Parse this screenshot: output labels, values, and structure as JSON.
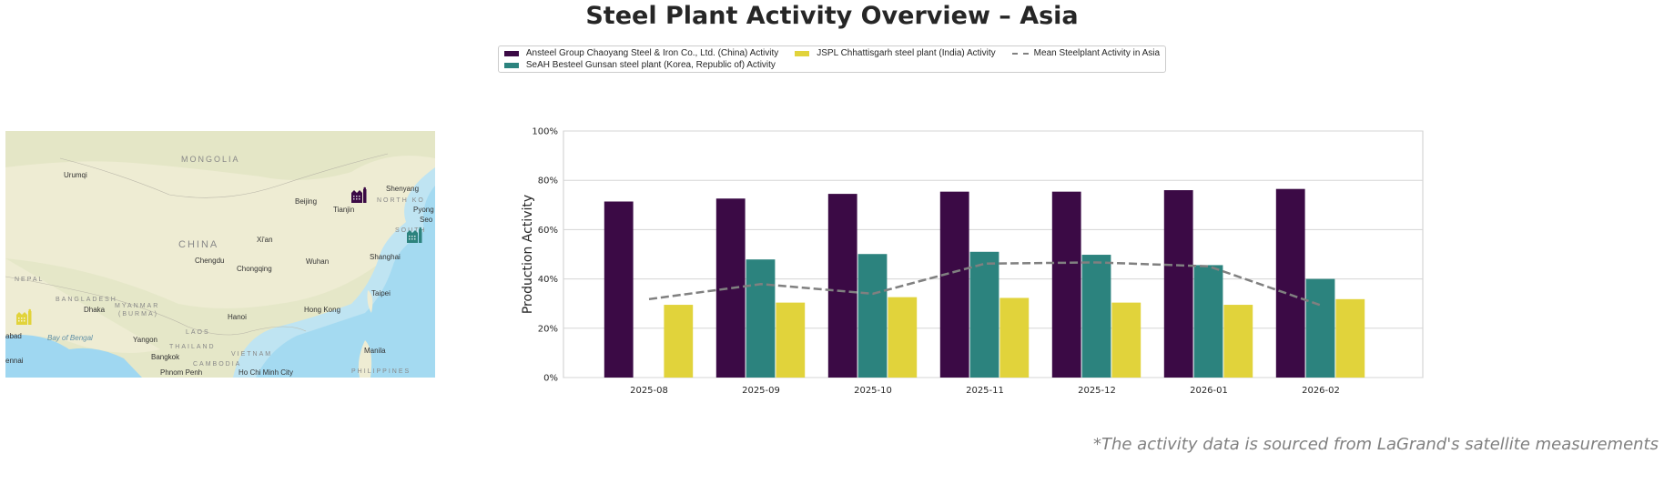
{
  "title": "Steel Plant Activity Overview – Asia",
  "footnote": "*The activity data is sourced from LaGrand's satellite measurements",
  "map": {
    "labels": {
      "mongolia": "MONGOLIA",
      "china": "CHINA",
      "urumqi": "Urumqi",
      "beijing": "Beijing",
      "tianjin": "Tianjin",
      "shenyang": "Shenyang",
      "north_korea": "NORTH KO",
      "pyong": "Pyong",
      "south": "SOUTH",
      "seo": "Seo",
      "xian": "Xi'an",
      "chengdu": "Chengdu",
      "chongqing": "Chongqing",
      "wuhan": "Wuhan",
      "shanghai": "Shanghai",
      "nepal": "NEPAL",
      "bangladesh": "BANGLADESH",
      "dhaka": "Dhaka",
      "myanmar": "MYANMAR",
      "burma": "(BURMA)",
      "taipei": "Taipei",
      "hanoi": "Hanoi",
      "hong_kong": "Hong Kong",
      "laos": "LAOS",
      "bay_of_bengal": "Bay of Bengal",
      "yangon": "Yangon",
      "thailand": "THAILAND",
      "vietnam": "VIETNAM",
      "bangkok": "Bangkok",
      "cambodia": "CAMBODIA",
      "manila": "Manila",
      "phnom_penh": "Phnom Penh",
      "ho_chi_minh": "Ho Chi Minh City",
      "philippines": "PHILIPPINES",
      "abad": "abad",
      "ennai": "ennai"
    },
    "markers": [
      {
        "plant": "Ansteel Group Chaoyang Steel & Iron Co., Ltd. (China)",
        "icon": "factory-icon",
        "color": "#3b0a45"
      },
      {
        "plant": "SeAH Besteel Gunsan steel plant (Korea, Republic of)",
        "icon": "factory-icon",
        "color": "#2c837e"
      },
      {
        "plant": "JSPL Chhattisgarh steel plant (India)",
        "icon": "factory-icon",
        "color": "#e1d33b"
      }
    ]
  },
  "chart_data": {
    "type": "bar",
    "title": "",
    "xlabel": "",
    "ylabel": "Production Activity",
    "ylim": [
      0,
      100
    ],
    "yticks": [
      "0%",
      "20%",
      "40%",
      "60%",
      "80%",
      "100%"
    ],
    "grid": true,
    "legend_placement": "top-center",
    "categories": [
      "2025-08",
      "2025-09",
      "2025-10",
      "2025-11",
      "2025-12",
      "2026-01",
      "2026-02"
    ],
    "series": [
      {
        "name": "Ansteel Group Chaoyang Steel & Iron Co., Ltd. (China) Activity",
        "color": "#3b0a45",
        "values": [
          71.4,
          72.6,
          74.5,
          75.4,
          75.4,
          76.0,
          76.5
        ]
      },
      {
        "name": "SeAH Besteel Gunsan steel plant (Korea, Republic of) Activity",
        "color": "#2c837e",
        "values": [
          null,
          47.9,
          50.1,
          51.0,
          49.8,
          45.6,
          40.0
        ]
      },
      {
        "name": "JSPL Chhattisgarh steel plant (India) Activity",
        "color": "#e1d33b",
        "values": [
          29.5,
          30.4,
          32.6,
          32.3,
          30.4,
          29.5,
          31.8
        ]
      }
    ],
    "mean_line": {
      "name": "Mean Steelplant Activity in Asia",
      "color": "#808080",
      "style": "dashed",
      "values": [
        31.8,
        37.9,
        34.0,
        46.2,
        46.7,
        45.1,
        29.3
      ]
    }
  }
}
